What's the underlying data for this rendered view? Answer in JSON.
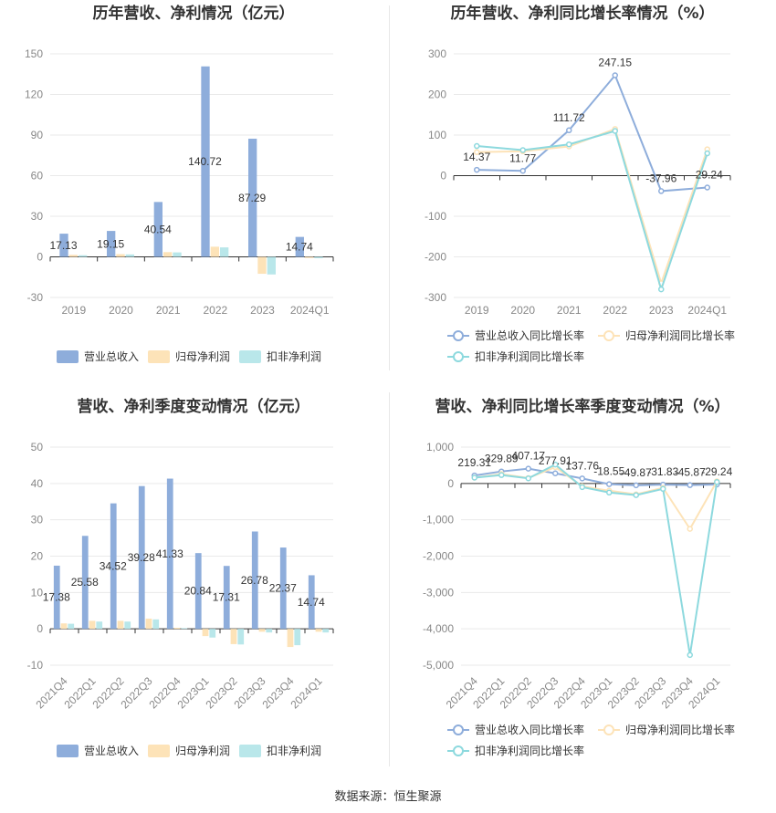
{
  "colors": {
    "revenue": "#8eaddb",
    "net_profit": "#fde3b8",
    "deducted_profit": "#b9e7ea",
    "revenue_growth": "#8eaddb",
    "net_profit_growth": "#fde3b8",
    "deducted_growth": "#8dd9de",
    "grid": "#e9e9e9",
    "axis": "#333333"
  },
  "chart_data": [
    {
      "id": "annual-bar",
      "type": "bar",
      "title": "历年营收、净利情况（亿元）",
      "categories": [
        "2019",
        "2020",
        "2021",
        "2022",
        "2023",
        "2024Q1"
      ],
      "series": [
        {
          "name": "营业总收入",
          "values": [
            17.13,
            19.15,
            40.54,
            140.72,
            87.29,
            14.74
          ],
          "labeled": true
        },
        {
          "name": "归母净利润",
          "values": [
            1.5,
            2.0,
            3.5,
            7.5,
            -12.5,
            -0.8
          ],
          "labeled": false
        },
        {
          "name": "扣非净利润",
          "values": [
            1.2,
            1.8,
            3.3,
            7.0,
            -13.0,
            -1.0
          ],
          "labeled": false
        }
      ],
      "yticks": [
        150,
        120,
        90,
        60,
        30,
        0,
        -30
      ],
      "ylim": [
        -30,
        150
      ],
      "grid": true,
      "legend": "bottom"
    },
    {
      "id": "annual-line",
      "type": "line",
      "title": "历年营收、净利同比增长率情况（%）",
      "categories": [
        "2019",
        "2020",
        "2021",
        "2022",
        "2023",
        "2024Q1"
      ],
      "series": [
        {
          "name": "营业总收入同比增长率",
          "values": [
            14.37,
            11.77,
            111.72,
            247.15,
            -37.96,
            -29.24
          ],
          "labels": [
            "14.37",
            "11.77",
            "111.72",
            "247.15",
            "-37.96",
            "-29.24"
          ]
        },
        {
          "name": "归母净利润同比增长率",
          "values": [
            58,
            60,
            72,
            115,
            -265,
            65
          ]
        },
        {
          "name": "扣非净利润同比增长率",
          "values": [
            73,
            63,
            77,
            110,
            -280,
            55
          ]
        }
      ],
      "yticks": [
        300,
        200,
        100,
        0,
        -100,
        -200,
        -300
      ],
      "ylim": [
        -300,
        300
      ],
      "grid": true,
      "legend": "bottom"
    },
    {
      "id": "quarterly-bar",
      "type": "bar",
      "title": "营收、净利季度变动情况（亿元）",
      "categories": [
        "2021Q4",
        "2022Q1",
        "2022Q2",
        "2022Q3",
        "2022Q4",
        "2023Q1",
        "2023Q2",
        "2023Q3",
        "2023Q4",
        "2024Q1"
      ],
      "series": [
        {
          "name": "营业总收入",
          "values": [
            17.38,
            25.58,
            34.52,
            39.28,
            41.33,
            20.84,
            17.31,
            26.78,
            22.37,
            14.74
          ],
          "labeled": true
        },
        {
          "name": "归母净利润",
          "values": [
            1.5,
            2.2,
            2.2,
            2.8,
            0.3,
            -2.0,
            -4.2,
            -0.8,
            -5.0,
            -0.8
          ],
          "labeled": false
        },
        {
          "name": "扣非净利润",
          "values": [
            1.4,
            2.0,
            2.0,
            2.6,
            0.2,
            -2.4,
            -4.3,
            -1.0,
            -4.5,
            -1.0
          ],
          "labeled": false
        }
      ],
      "yticks": [
        50,
        40,
        30,
        20,
        10,
        0,
        -10
      ],
      "ylim": [
        -10,
        50
      ],
      "grid": true,
      "legend": "bottom"
    },
    {
      "id": "quarterly-line",
      "type": "line",
      "title": "营收、净利同比增长率季度变动情况（%）",
      "categories": [
        "2021Q4",
        "2022Q1",
        "2022Q2",
        "2022Q3",
        "2022Q4",
        "2023Q1",
        "2023Q2",
        "2023Q3",
        "2023Q4",
        "2024Q1"
      ],
      "series": [
        {
          "name": "营业总收入同比增长率",
          "values": [
            219.31,
            329.89,
            407.17,
            277.91,
            137.76,
            -18.55,
            -49.87,
            -31.83,
            -45.87,
            -29.24
          ],
          "labels": [
            "219.31",
            "329.89",
            "407.17",
            "277.91",
            "137.76",
            "-18.55",
            "-49.87",
            "-31.83",
            "-45.87",
            "-29.24"
          ]
        },
        {
          "name": "归母净利润同比增长率",
          "values": [
            160,
            260,
            150,
            450,
            -80,
            -200,
            -300,
            -120,
            -1250,
            60
          ]
        },
        {
          "name": "扣非净利润同比增长率",
          "values": [
            160,
            230,
            140,
            520,
            -100,
            -250,
            -320,
            -150,
            -4720,
            40
          ]
        }
      ],
      "yticks": [
        1000,
        0,
        -1000,
        -2000,
        -3000,
        -4000,
        -5000
      ],
      "yticklabels": [
        "1,000",
        "0",
        "-1,000",
        "-2,000",
        "-3,000",
        "-4,000",
        "-5,000"
      ],
      "ylim": [
        -5000,
        1000
      ],
      "grid": true,
      "legend": "bottom"
    }
  ],
  "footer": {
    "source": "数据来源：恒生聚源"
  }
}
